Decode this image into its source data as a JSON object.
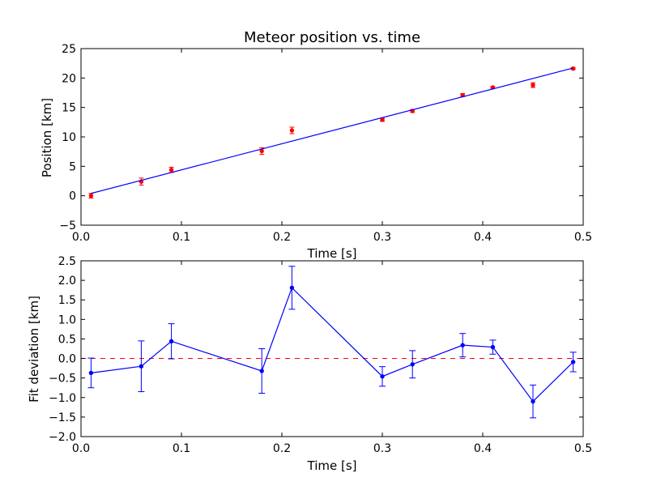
{
  "colors": {
    "fit_line": "#0000ff",
    "data_points": "#ff0000",
    "residuals": "#0000ff",
    "zero_line": "#ff0000",
    "frame": "#000000",
    "background": "#ffffff"
  },
  "chart_data": [
    {
      "type": "scatter",
      "title": "Meteor position vs. time",
      "xlabel": "Time [s]",
      "ylabel": "Position [km]",
      "xlim": [
        0,
        0.5
      ],
      "ylim": [
        -5,
        25
      ],
      "xticks": [
        0.0,
        0.1,
        0.2,
        0.3,
        0.4,
        0.5
      ],
      "xtick_labels": [
        "0.0",
        "0.1",
        "0.2",
        "0.3",
        "0.4",
        "0.5"
      ],
      "yticks": [
        -5,
        0,
        5,
        10,
        15,
        20,
        25
      ],
      "ytick_labels": [
        "−5",
        "0",
        "5",
        "10",
        "15",
        "20",
        "25"
      ],
      "grid": false,
      "series": [
        {
          "kind": "errorbar-points",
          "x": [
            0.01,
            0.06,
            0.09,
            0.18,
            0.21,
            0.3,
            0.33,
            0.38,
            0.41,
            0.45,
            0.49
          ],
          "y": [
            0.0,
            2.4,
            4.4,
            7.6,
            11.1,
            12.9,
            14.4,
            17.1,
            18.4,
            18.8,
            21.6
          ],
          "yerr": [
            0.4,
            0.6,
            0.45,
            0.55,
            0.55,
            0.25,
            0.25,
            0.25,
            0.15,
            0.4,
            0.15
          ]
        },
        {
          "kind": "fit-line",
          "x": [
            0.01,
            0.49
          ],
          "y": [
            0.4,
            21.7
          ]
        }
      ]
    },
    {
      "type": "line",
      "xlabel": "Time [s]",
      "ylabel": "Fit deviation [km]",
      "xlim": [
        0,
        0.5
      ],
      "ylim": [
        -2.0,
        2.5
      ],
      "xticks": [
        0.0,
        0.1,
        0.2,
        0.3,
        0.4,
        0.5
      ],
      "xtick_labels": [
        "0.0",
        "0.1",
        "0.2",
        "0.3",
        "0.4",
        "0.5"
      ],
      "yticks": [
        -2.0,
        -1.5,
        -1.0,
        -0.5,
        0.0,
        0.5,
        1.0,
        1.5,
        2.0,
        2.5
      ],
      "ytick_labels": [
        "−2.0",
        "−1.5",
        "−1.0",
        "−0.5",
        "0.0",
        "0.5",
        "1.0",
        "1.5",
        "2.0",
        "2.5"
      ],
      "grid": false,
      "reference_line_y": 0,
      "series": [
        {
          "kind": "errorbar-line",
          "x": [
            0.01,
            0.06,
            0.09,
            0.18,
            0.21,
            0.3,
            0.33,
            0.38,
            0.41,
            0.45,
            0.49
          ],
          "y": [
            -0.37,
            -0.2,
            0.44,
            -0.32,
            1.81,
            -0.46,
            -0.15,
            0.34,
            0.29,
            -1.1,
            -0.09
          ],
          "yerr": [
            0.38,
            0.65,
            0.45,
            0.57,
            0.55,
            0.25,
            0.35,
            0.3,
            0.18,
            0.42,
            0.25
          ]
        }
      ]
    }
  ]
}
